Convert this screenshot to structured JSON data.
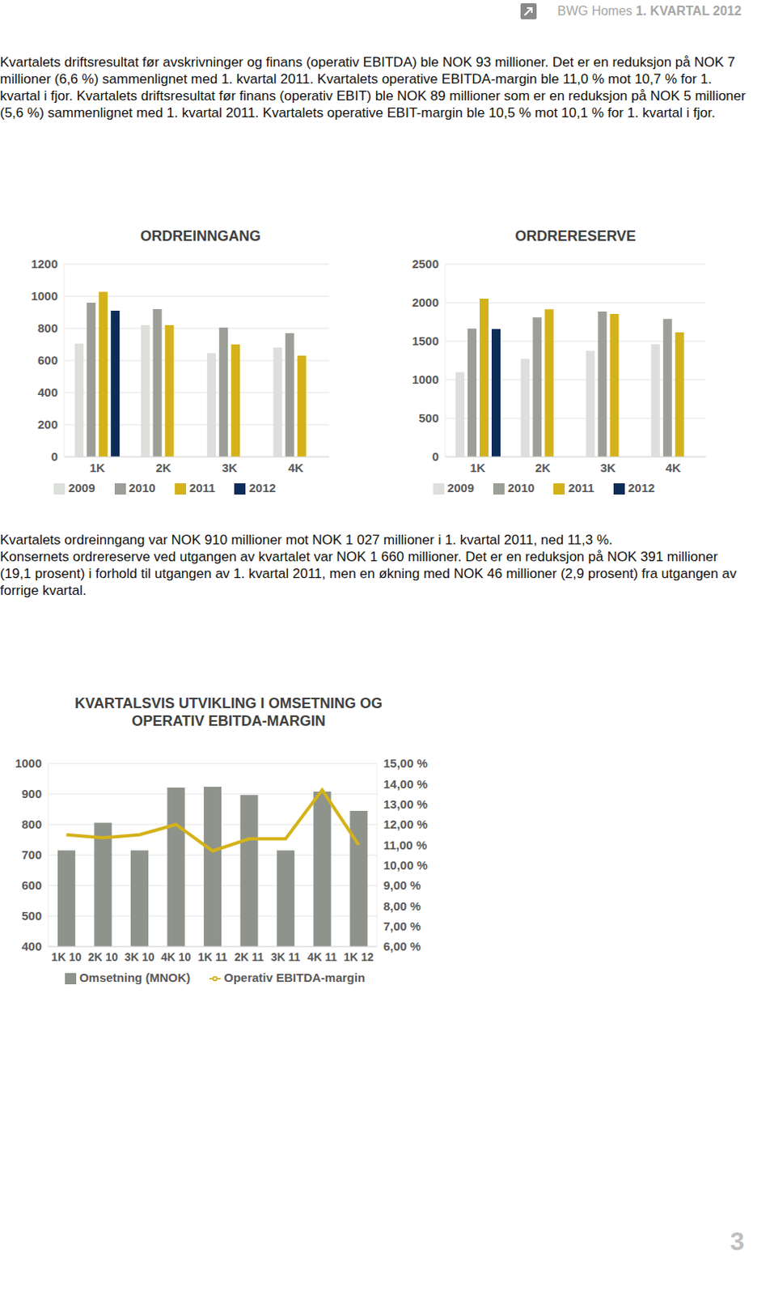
{
  "page_header": {
    "company": "BWG Homes",
    "period": "1. KVARTAL 2012"
  },
  "text_top": [
    "Kvartalets driftsresultat før avskrivninger og finans (operativ EBITDA) ble NOK 93 millioner. Det er en reduksjon på NOK 7 millioner (6,6 %) sammenlignet med 1. kvartal 2011. Kvartalets operative EBITDA-margin ble 11,0 % mot 10,7 % for 1. kvartal i fjor. Kvartalets driftsresultat før finans (operativ EBIT) ble NOK 89 millioner som er en reduksjon på NOK 5 millioner (5,6 %) sammenlignet med 1. kvartal 2011. Kvartalets operative EBIT-margin ble 10,5 % mot 10,1 % for 1. kvartal i fjor."
  ],
  "chart_data": [
    {
      "type": "bar",
      "title": "ORDREINNGANG",
      "categories": [
        "1K",
        "2K",
        "3K",
        "4K"
      ],
      "series": [
        {
          "name": "2009",
          "color": "#dcdfdb",
          "values": [
            705,
            820,
            645,
            680
          ]
        },
        {
          "name": "2010",
          "color": "#9b9f98",
          "values": [
            960,
            920,
            805,
            770
          ]
        },
        {
          "name": "2011",
          "color": "#d4b21a",
          "values": [
            1027,
            820,
            700,
            630
          ]
        },
        {
          "name": "2012",
          "color": "#0d2d58",
          "values": [
            910,
            null,
            null,
            null
          ]
        }
      ],
      "ylim": [
        0,
        1200
      ],
      "yticks": [
        0,
        200,
        400,
        600,
        800,
        1000,
        1200
      ],
      "grid": true,
      "legend": "bottom"
    },
    {
      "type": "bar",
      "title": "ORDRERESERVE",
      "categories": [
        "1K",
        "2K",
        "3K",
        "4K"
      ],
      "series": [
        {
          "name": "2009",
          "color": "#dcdfdb",
          "values": [
            1100,
            1270,
            1375,
            1460
          ]
        },
        {
          "name": "2010",
          "color": "#9b9f98",
          "values": [
            1665,
            1810,
            1885,
            1790
          ]
        },
        {
          "name": "2011",
          "color": "#d4b21a",
          "values": [
            2051,
            1915,
            1855,
            1614
          ]
        },
        {
          "name": "2012",
          "color": "#0d2d58",
          "values": [
            1660,
            null,
            null,
            null
          ]
        }
      ],
      "ylim": [
        0,
        2500
      ],
      "yticks": [
        0,
        500,
        1000,
        1500,
        2000,
        2500
      ],
      "grid": true,
      "legend": "bottom"
    },
    {
      "type": "bar",
      "title": "KVARTALSVIS UTVIKLING I OMSETNING OG OPERATIV EBITDA-MARGIN",
      "categories": [
        "1K 10",
        "2K 10",
        "3K 10",
        "4K 10",
        "1K 11",
        "2K 11",
        "3K 11",
        "4K 11",
        "1K 12"
      ],
      "series": [
        {
          "name": "Omsetning (MNOK)",
          "type": "bar",
          "color": "#8e938b",
          "values": [
            715,
            806,
            715,
            921,
            924,
            897,
            715,
            908,
            845
          ]
        },
        {
          "name": "Operativ EBITDA-margin",
          "type": "line",
          "axis": "y2",
          "color": "#d4b21a",
          "marker": "none",
          "values": [
            11.5,
            11.35,
            11.5,
            12.0,
            10.7,
            11.3,
            11.3,
            13.7,
            11.0
          ]
        }
      ],
      "ylim": [
        400,
        1000
      ],
      "yticks": [
        400,
        500,
        600,
        700,
        800,
        900,
        1000
      ],
      "y2lim": [
        6,
        15
      ],
      "y2ticks": [
        {
          "value": 6,
          "label": "6,00 %"
        },
        {
          "value": 7,
          "label": "7,00 %"
        },
        {
          "value": 8,
          "label": "8,00 %"
        },
        {
          "value": 9,
          "label": "9,00 %"
        },
        {
          "value": 10,
          "label": "10,00 %"
        },
        {
          "value": 11,
          "label": "11,00 %"
        },
        {
          "value": 12,
          "label": "12,00 %"
        },
        {
          "value": 13,
          "label": "13,00 %"
        },
        {
          "value": 14,
          "label": "14,00 %"
        },
        {
          "value": 15,
          "label": "15,00 %"
        }
      ],
      "grid": true,
      "legend": "bottom"
    }
  ],
  "text_bottom": [
    "Kvartalets ordreinngang var NOK 910 millioner mot NOK 1 027 millioner i 1. kvartal 2011, ned 11,3 %.",
    "Konsernets ordrereserve ved utgangen av kvartalet var NOK 1 660 millioner. Det er en reduksjon på NOK 391 millioner (19,1 prosent) i forhold til utgangen av 1. kvartal 2011, men en økning med NOK 46 millioner (2,9 prosent) fra utgangen av forrige kvartal."
  ],
  "page_number": 3
}
